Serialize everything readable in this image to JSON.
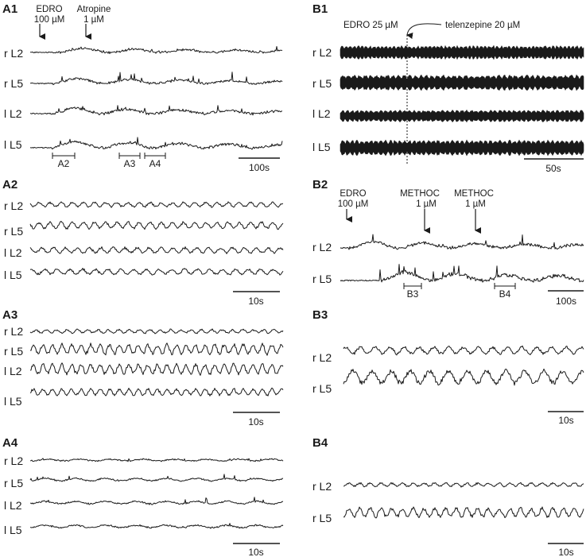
{
  "panels": {
    "A1": {
      "label": "A1",
      "traces": [
        "r L2",
        "r L5",
        "l L2",
        "l L5"
      ],
      "drugs": [
        {
          "line1": "EDRO",
          "line2": "100 µM"
        },
        {
          "line1": "Atropine",
          "line2": "1 µM"
        }
      ],
      "segments": [
        "A2",
        "A3",
        "A4"
      ],
      "scale": "100s"
    },
    "A2": {
      "label": "A2",
      "traces": [
        "r L2",
        "r L5",
        "l L2",
        "l L5"
      ],
      "scale": "10s"
    },
    "A3": {
      "label": "A3",
      "traces": [
        "r L2",
        "r L5",
        "l L2",
        "l L5"
      ],
      "scale": "10s"
    },
    "A4": {
      "label": "A4",
      "traces": [
        "r L2",
        "r L5",
        "l L2",
        "l L5"
      ],
      "scale": "10s"
    },
    "B1": {
      "label": "B1",
      "traces": [
        "r L2",
        "r L5",
        "l L2",
        "l L5"
      ],
      "drugs": [
        {
          "line1": "EDRO 25 µM"
        },
        {
          "line1": "telenzepine  20 µM"
        }
      ],
      "scale": "50s"
    },
    "B2": {
      "label": "B2",
      "traces": [
        "r L2",
        "r L5"
      ],
      "drugs": [
        {
          "line1": "EDRO",
          "line2": "100 µM"
        },
        {
          "line1": "METHOC",
          "line2": "1 µM"
        },
        {
          "line1": "METHOC",
          "line2": "1 µM"
        }
      ],
      "segments": [
        "B3",
        "B4"
      ],
      "scale": "100s"
    },
    "B3": {
      "label": "B3",
      "traces": [
        "r L2",
        "r L5"
      ],
      "scale": "10s"
    },
    "B4": {
      "label": "B4",
      "traces": [
        "r L2",
        "r L5"
      ],
      "scale": "10s"
    }
  }
}
